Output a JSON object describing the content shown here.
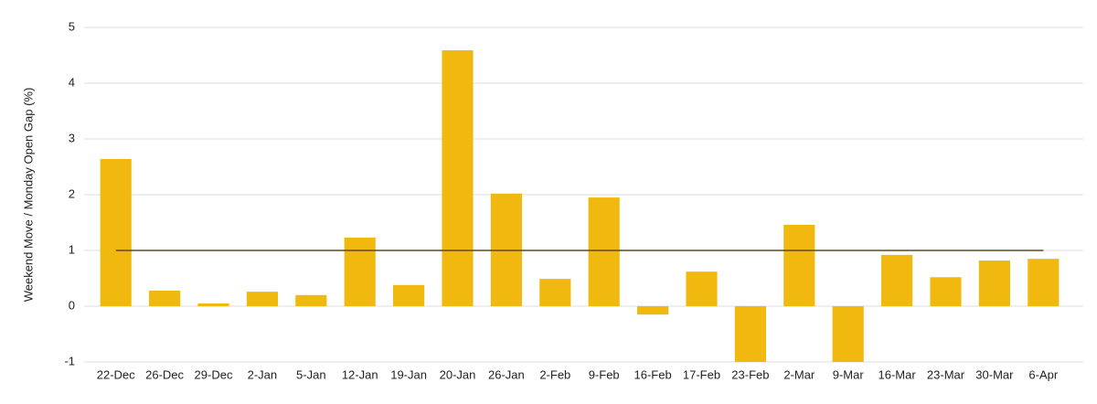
{
  "chart_data": {
    "type": "bar",
    "y_label": "Weekend Move / Monday Open Gap (%)",
    "categories": [
      "22-Dec",
      "26-Dec",
      "29-Dec",
      "2-Jan",
      "5-Jan",
      "12-Jan",
      "19-Jan",
      "20-Jan",
      "26-Jan",
      "2-Feb",
      "9-Feb",
      "16-Feb",
      "17-Feb",
      "23-Feb",
      "2-Mar",
      "9-Mar",
      "16-Mar",
      "23-Mar",
      "30-Mar",
      "6-Apr"
    ],
    "values": [
      2.64,
      0.28,
      0.05,
      0.26,
      0.2,
      1.23,
      0.38,
      4.59,
      2.02,
      0.49,
      1.95,
      -0.15,
      0.62,
      -1,
      1.46,
      -1,
      0.92,
      0.52,
      0.82,
      0.85
    ],
    "color": "#f1b90f",
    "reference_line": 1,
    "reference_color": "#5b4a1c",
    "ylim": [
      -1,
      5
    ],
    "yticks": [
      -1,
      0,
      1,
      2,
      3,
      4,
      5
    ],
    "grid": true
  }
}
